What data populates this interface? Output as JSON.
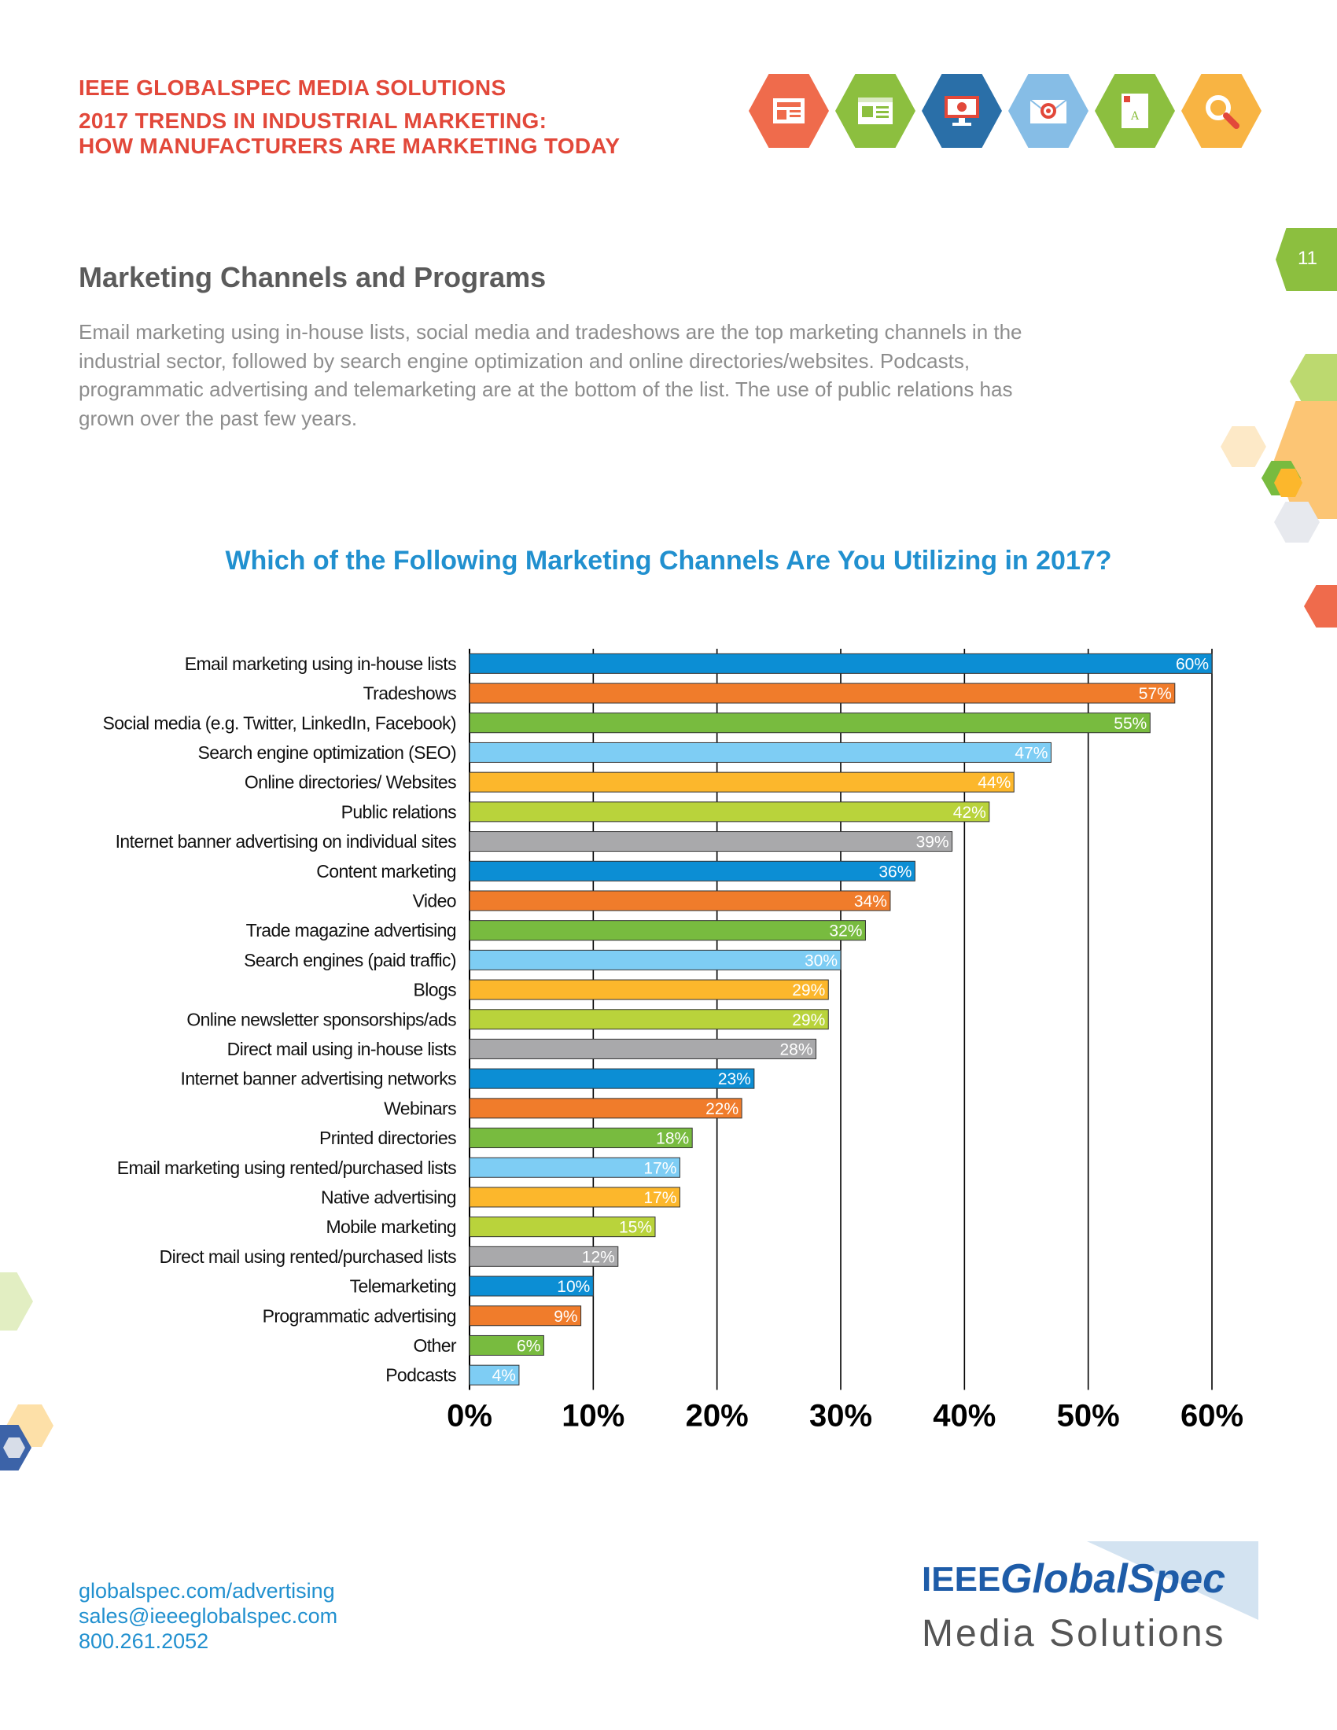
{
  "header": {
    "line1": "IEEE GLOBALSPEC MEDIA SOLUTIONS",
    "line2": "2017 TRENDS IN INDUSTRIAL MARKETING:",
    "line3": "HOW MANUFACTURERS ARE MARKETING TODAY",
    "icons": [
      {
        "name": "newsletter-icon",
        "color": "#ef6b4c"
      },
      {
        "name": "web-page-icon",
        "color": "#8cbf3f"
      },
      {
        "name": "monitor-icon",
        "color": "#2a6fa8"
      },
      {
        "name": "email-target-icon",
        "color": "#86bde6"
      },
      {
        "name": "document-icon",
        "color": "#8cbf3f"
      },
      {
        "name": "search-icon",
        "color": "#f8b443"
      }
    ]
  },
  "page_number": "11",
  "section_title": "Marketing Channels and Programs",
  "intro_text": "Email marketing using in-house lists, social media and tradeshows are the top marketing channels in the industrial sector, followed by search engine optimization and online directories/websites. Podcasts, programmatic advertising and telemarketing are at the bottom of the list. The use of public relations has grown over the past few years.",
  "chart_title": "Which of the Following Marketing Channels Are You Utilizing in 2017?",
  "chart_data": {
    "type": "bar",
    "orientation": "horizontal",
    "title": "Which of the Following Marketing Channels Are You Utilizing in 2017?",
    "xlabel": "",
    "ylabel": "",
    "xlim": [
      0,
      60
    ],
    "x_ticks": [
      "0%",
      "10%",
      "20%",
      "30%",
      "40%",
      "50%",
      "60%"
    ],
    "grid": true,
    "value_suffix": "%",
    "categories": [
      "Email marketing using in-house lists",
      "Tradeshows",
      "Social media (e.g. Twitter, LinkedIn, Facebook)",
      "Search engine optimization (SEO)",
      "Online directories/ Websites",
      "Public relations",
      "Internet banner advertising on individual sites",
      "Content marketing",
      "Video",
      "Trade magazine advertising",
      "Search engines (paid traffic)",
      "Blogs",
      "Online newsletter sponsorships/ads",
      "Direct mail using in-house lists",
      "Internet banner advertising networks",
      "Webinars",
      "Printed directories",
      "Email marketing using rented/purchased lists",
      "Native advertising",
      "Mobile marketing",
      "Direct mail using rented/purchased lists",
      "Telemarketing",
      "Programmatic advertising",
      "Other",
      "Podcasts"
    ],
    "values": [
      60,
      57,
      55,
      47,
      44,
      42,
      39,
      36,
      34,
      32,
      30,
      29,
      29,
      28,
      23,
      22,
      18,
      17,
      17,
      15,
      12,
      10,
      9,
      6,
      4
    ],
    "bar_colors": [
      "#0c8ed4",
      "#f07c2b",
      "#78bb3f",
      "#7ecdf4",
      "#fcb72c",
      "#b9d33b",
      "#a9a9ab"
    ]
  },
  "footer": {
    "link": "globalspec.com/advertising",
    "email": "sales@ieeeglobalspec.com",
    "phone": "800.261.2052"
  },
  "logo": {
    "ieee": "IEEE",
    "brand": "GlobalSpec",
    "tagline": "Media Solutions"
  }
}
